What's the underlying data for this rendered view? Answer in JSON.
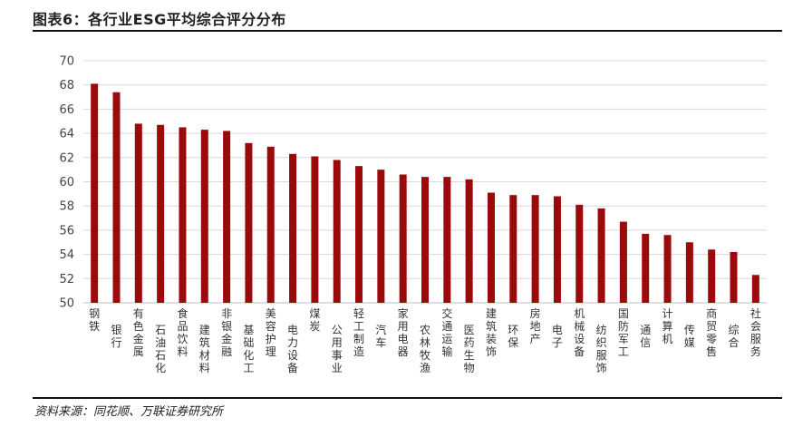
{
  "title": "图表6：各行业ESG平均综合评分分布",
  "source": "资料来源：同花顺、万联证券研究所",
  "colors": {
    "bar": "#9b0a0a",
    "grid": "#d9d9d9",
    "axis": "#bfbfbf"
  },
  "chart_data": {
    "type": "bar",
    "categories": [
      "钢铁",
      "银行",
      "有色金属",
      "石油石化",
      "食品饮料",
      "建筑材料",
      "非银金融",
      "基础化工",
      "美容护理",
      "电力设备",
      "煤炭",
      "公用事业",
      "轻工制造",
      "汽车",
      "家用电器",
      "农林牧渔",
      "交通运输",
      "医药生物",
      "建筑装饰",
      "环保",
      "房地产",
      "电子",
      "机械设备",
      "纺织服饰",
      "国防军工",
      "通信",
      "计算机",
      "传媒",
      "商贸零售",
      "综合",
      "社会服务"
    ],
    "values": [
      68.1,
      67.4,
      64.8,
      64.7,
      64.5,
      64.3,
      64.2,
      63.2,
      62.9,
      62.3,
      62.1,
      61.8,
      61.3,
      61.0,
      60.6,
      60.4,
      60.4,
      60.2,
      59.1,
      58.9,
      58.9,
      58.8,
      58.1,
      57.8,
      56.7,
      55.7,
      55.6,
      55.0,
      54.4,
      54.2,
      52.3
    ],
    "ylim": [
      50,
      70
    ],
    "yticks": [
      "50",
      "52",
      "54",
      "56",
      "58",
      "60",
      "62",
      "64",
      "66",
      "68",
      "70"
    ],
    "grid": true,
    "legend": "none"
  }
}
